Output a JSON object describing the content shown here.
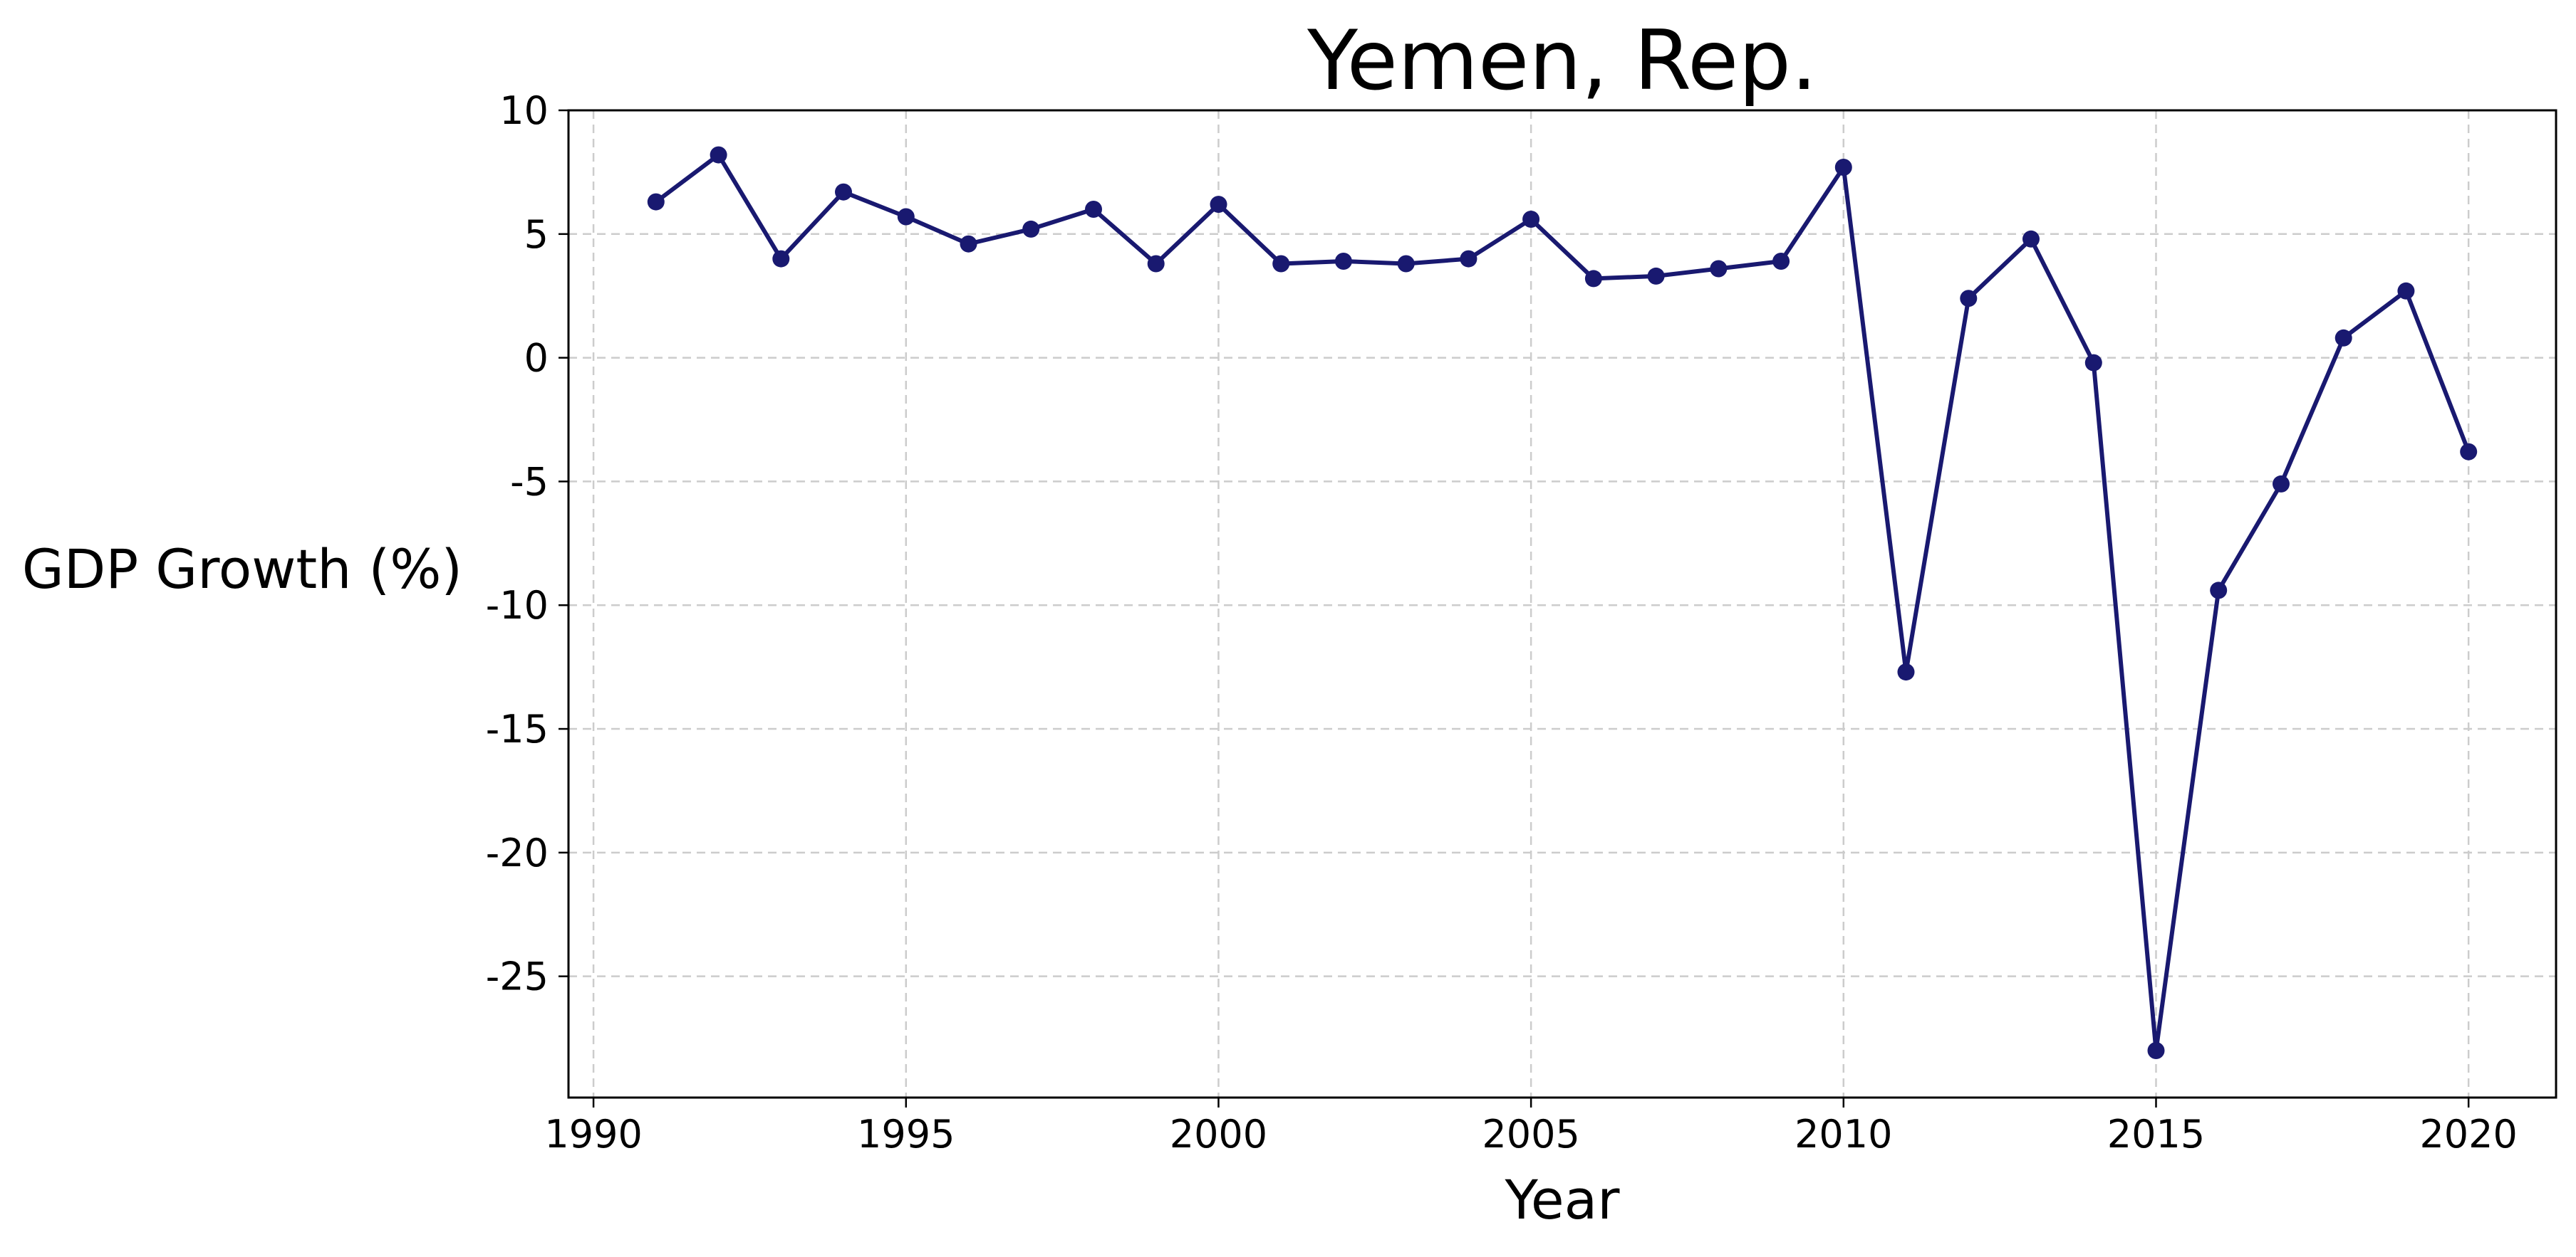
{
  "chart_data": {
    "type": "line",
    "title": "Yemen, Rep.",
    "xlabel": "Year",
    "ylabel": "GDP Growth (%)",
    "xlim": [
      1989.6,
      2021.4
    ],
    "ylim": [
      -29.9,
      10
    ],
    "x_ticks": [
      1990,
      1995,
      2000,
      2005,
      2010,
      2015,
      2020
    ],
    "x_tick_labels": [
      "1990",
      "1995",
      "2000",
      "2005",
      "2010",
      "2015",
      "2020"
    ],
    "y_ticks": [
      10,
      5,
      0,
      -5,
      -10,
      -15,
      -20,
      -25
    ],
    "y_tick_labels": [
      "10",
      "5",
      "0",
      "-5",
      "-10",
      "-15",
      "-20",
      "-25"
    ],
    "grid": true,
    "legend": "none",
    "series_color": "#191970",
    "series": [
      {
        "x": [
          1991,
          1992,
          1993,
          1994,
          1995,
          1996,
          1997,
          1998,
          1999,
          2000,
          2001,
          2002,
          2003,
          2004,
          2005,
          2006,
          2007,
          2008,
          2009,
          2010,
          2011,
          2012,
          2013,
          2014,
          2015,
          2016,
          2017,
          2018,
          2019,
          2020
        ],
        "values": [
          6.3,
          8.2,
          4.0,
          6.7,
          5.7,
          4.6,
          5.2,
          6.0,
          3.8,
          6.2,
          3.8,
          3.9,
          3.8,
          4.0,
          5.6,
          3.2,
          3.3,
          3.6,
          3.9,
          7.7,
          -12.7,
          2.4,
          4.8,
          -0.2,
          -28.0,
          -9.4,
          -5.1,
          0.8,
          2.7,
          -3.8
        ]
      }
    ]
  }
}
